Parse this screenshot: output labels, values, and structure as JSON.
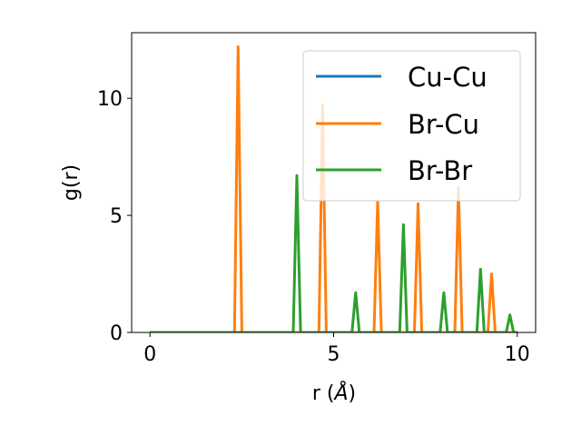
{
  "chart_data": {
    "type": "line",
    "xlabel_prefix": "r (",
    "xlabel_unit": "Å",
    "xlabel_suffix": ")",
    "ylabel": "g(r)",
    "xlim": [
      -0.5,
      10.5
    ],
    "ylim": [
      0,
      12.8
    ],
    "xticks": [
      0,
      5,
      10
    ],
    "yticks": [
      0,
      5,
      10
    ],
    "xtick_labels": [
      "0",
      "5",
      "10"
    ],
    "ytick_labels": [
      "0",
      "5",
      "10"
    ],
    "grid": false,
    "legend_position": "top-right",
    "series": [
      {
        "name": "Cu-Cu",
        "color": "#1f77b4",
        "x": [
          0,
          10
        ],
        "y": [
          0,
          0
        ]
      },
      {
        "name": "Br-Cu",
        "color": "#ff7f0e",
        "x": [
          0,
          2.3,
          2.4,
          2.5,
          4.6,
          4.7,
          4.8,
          6.1,
          6.2,
          6.3,
          7.2,
          7.3,
          7.4,
          8.3,
          8.4,
          8.5,
          9.2,
          9.3,
          9.4,
          10
        ],
        "y": [
          0,
          0,
          12.2,
          0,
          0,
          9.7,
          0,
          0,
          5.6,
          0,
          0,
          5.5,
          0,
          0,
          6.2,
          0,
          0,
          2.5,
          0,
          0
        ]
      },
      {
        "name": "Br-Br",
        "color": "#2ca02c",
        "x": [
          0,
          3.9,
          4.0,
          4.1,
          5.5,
          5.6,
          5.7,
          6.8,
          6.9,
          7.0,
          7.9,
          8.0,
          8.1,
          8.9,
          9.0,
          9.1,
          9.7,
          9.8,
          9.9,
          10
        ],
        "y": [
          0,
          0,
          6.7,
          0,
          0,
          1.7,
          0,
          0,
          4.6,
          0,
          0,
          1.7,
          0,
          0,
          2.7,
          0,
          0,
          0.75,
          0,
          0
        ]
      }
    ]
  }
}
